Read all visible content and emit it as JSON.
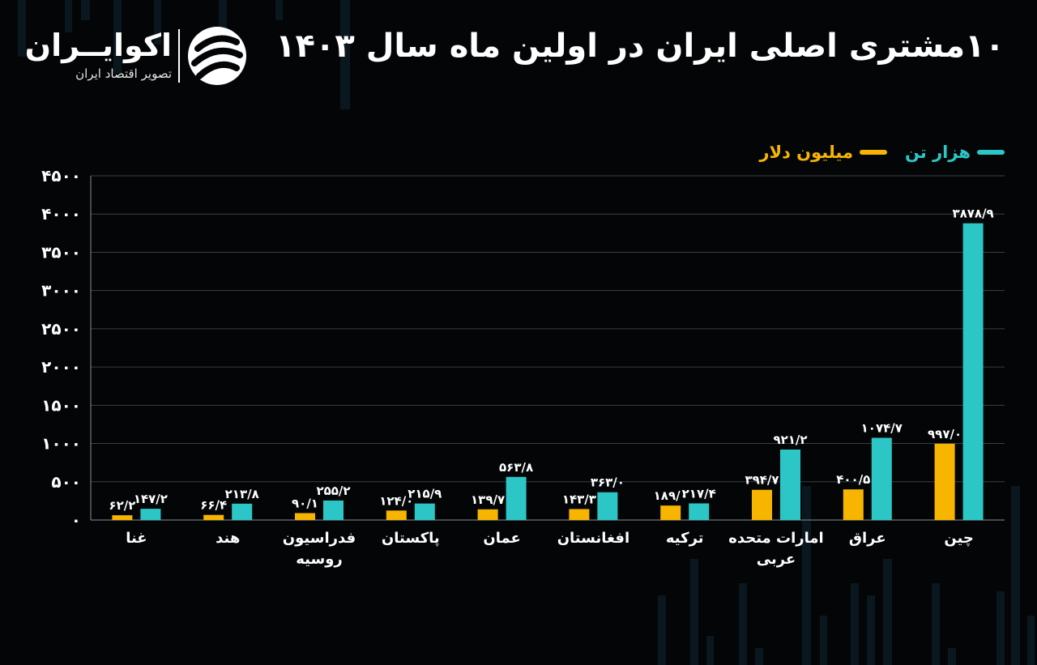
{
  "header": {
    "title": "۱۰مشتری اصلی ایران در اولین ماه سال ۱۴۰۳",
    "logo_name": "اکوایــران",
    "logo_sub": "تصویر اقتصاد ایران"
  },
  "colors": {
    "background": "#030507",
    "teal": "#2cc6c6",
    "gold": "#f7b500",
    "grid": "#3a3f45",
    "text": "#ffffff"
  },
  "chart_data": {
    "type": "bar",
    "title": "۱۰مشتری اصلی ایران در اولین ماه سال ۱۴۰۳",
    "xlabel": "",
    "ylabel": "",
    "ylim": [
      0,
      4500
    ],
    "yticks": [
      0,
      500,
      1000,
      1500,
      2000,
      2500,
      3000,
      3500,
      4000,
      4500
    ],
    "ytick_labels": [
      "۰",
      "۵۰۰",
      "۱۰۰۰",
      "۱۵۰۰",
      "۲۰۰۰",
      "۲۵۰۰",
      "۳۰۰۰",
      "۳۵۰۰",
      "۴۰۰۰",
      "۴۵۰۰"
    ],
    "grid": true,
    "legend_position": "top-right",
    "categories": [
      [
        "غنا"
      ],
      [
        "هند"
      ],
      [
        "فدراسیون",
        "روسیه"
      ],
      [
        "پاکستان"
      ],
      [
        "عمان"
      ],
      [
        "افغانستان"
      ],
      [
        "ترکیه"
      ],
      [
        "امارات متحده",
        "عربی"
      ],
      [
        "عراق"
      ],
      [
        "چین"
      ]
    ],
    "series": [
      {
        "name": "میلیون دلار",
        "color": "#f7b500",
        "values": [
          62.2,
          66.4,
          90.1,
          124.0,
          139.7,
          143.3,
          189.0,
          394.7,
          400.5,
          997.0
        ],
        "labels": [
          "۶۲/۲",
          "۶۶/۴",
          "۹۰/۱",
          "۱۲۴/۰",
          "۱۳۹/۷",
          "۱۴۳/۳",
          "۱۸۹/۰",
          "۳۹۴/۷",
          "۴۰۰/۵",
          "۹۹۷/۰"
        ]
      },
      {
        "name": "هزار تن",
        "color": "#2cc6c6",
        "values": [
          147.2,
          213.8,
          255.2,
          215.9,
          563.8,
          363.0,
          217.4,
          921.2,
          1074.7,
          3878.9
        ],
        "labels": [
          "۱۴۷/۲",
          "۲۱۳/۸",
          "۲۵۵/۲",
          "۲۱۵/۹",
          "۵۶۳/۸",
          "۳۶۳/۰",
          "۲۱۷/۴",
          "۹۲۱/۲",
          "۱۰۷۴/۷",
          "۳۸۷۸/۹"
        ]
      }
    ]
  }
}
